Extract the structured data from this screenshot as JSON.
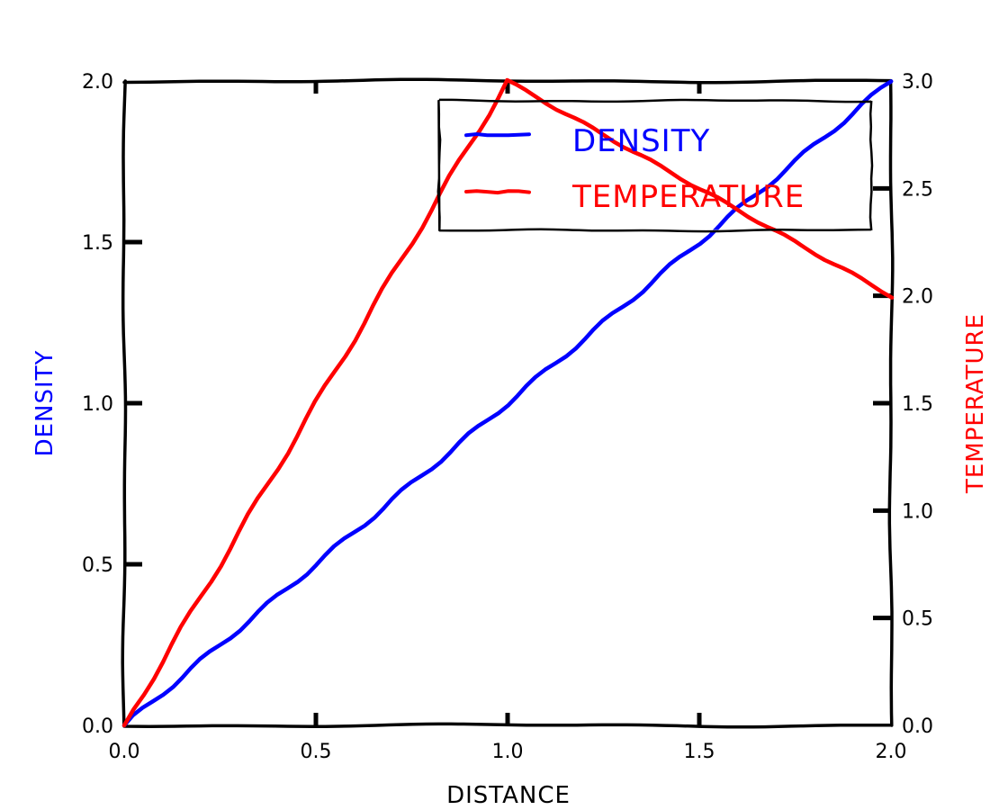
{
  "chart_data": {
    "type": "line",
    "style": "xkcd",
    "xlabel": "DISTANCE",
    "x_ticks": [
      "0.0",
      "0.5",
      "1.0",
      "1.5",
      "2.0"
    ],
    "xlim": [
      0,
      2
    ],
    "left_axis": {
      "label": "DENSITY",
      "color": "#0000ff",
      "ylim": [
        0,
        2
      ],
      "ticks": [
        "0.0",
        "0.5",
        "1.0",
        "1.5",
        "2.0"
      ]
    },
    "right_axis": {
      "label": "TEMPERATURE",
      "color": "#ff0000",
      "ylim": [
        0,
        3
      ],
      "ticks": [
        "0.0",
        "0.5",
        "1.0",
        "1.5",
        "2.0",
        "2.5",
        "3.0"
      ]
    },
    "series": [
      {
        "name": "DENSITY",
        "axis": "left",
        "color": "#0000ff",
        "x": [
          0,
          0.1,
          0.2,
          0.3,
          0.4,
          0.5,
          0.6,
          0.7,
          0.8,
          0.9,
          1.0,
          1.1,
          1.2,
          1.3,
          1.4,
          1.5,
          1.6,
          1.7,
          1.8,
          1.9,
          2.0
        ],
        "y": [
          0,
          0.1,
          0.2,
          0.3,
          0.4,
          0.5,
          0.6,
          0.7,
          0.8,
          0.9,
          1.0,
          1.1,
          1.2,
          1.3,
          1.4,
          1.5,
          1.6,
          1.7,
          1.8,
          1.9,
          2.0
        ]
      },
      {
        "name": "TEMPERATURE",
        "axis": "right",
        "color": "#ff0000",
        "x": [
          0,
          0.1,
          0.2,
          0.3,
          0.4,
          0.5,
          0.6,
          0.7,
          0.8,
          0.9,
          1.0,
          1.1,
          1.2,
          1.3,
          1.4,
          1.5,
          1.6,
          1.7,
          1.8,
          1.9,
          2.0
        ],
        "y": [
          0,
          0.3,
          0.6,
          0.9,
          1.2,
          1.5,
          1.8,
          2.1,
          2.4,
          2.7,
          3.0,
          2.9,
          2.8,
          2.7,
          2.6,
          2.5,
          2.4,
          2.3,
          2.2,
          2.1,
          2.0
        ]
      }
    ],
    "legend": {
      "location": "top-right",
      "entries": [
        "DENSITY",
        "TEMPERATURE"
      ]
    },
    "grid": false
  }
}
